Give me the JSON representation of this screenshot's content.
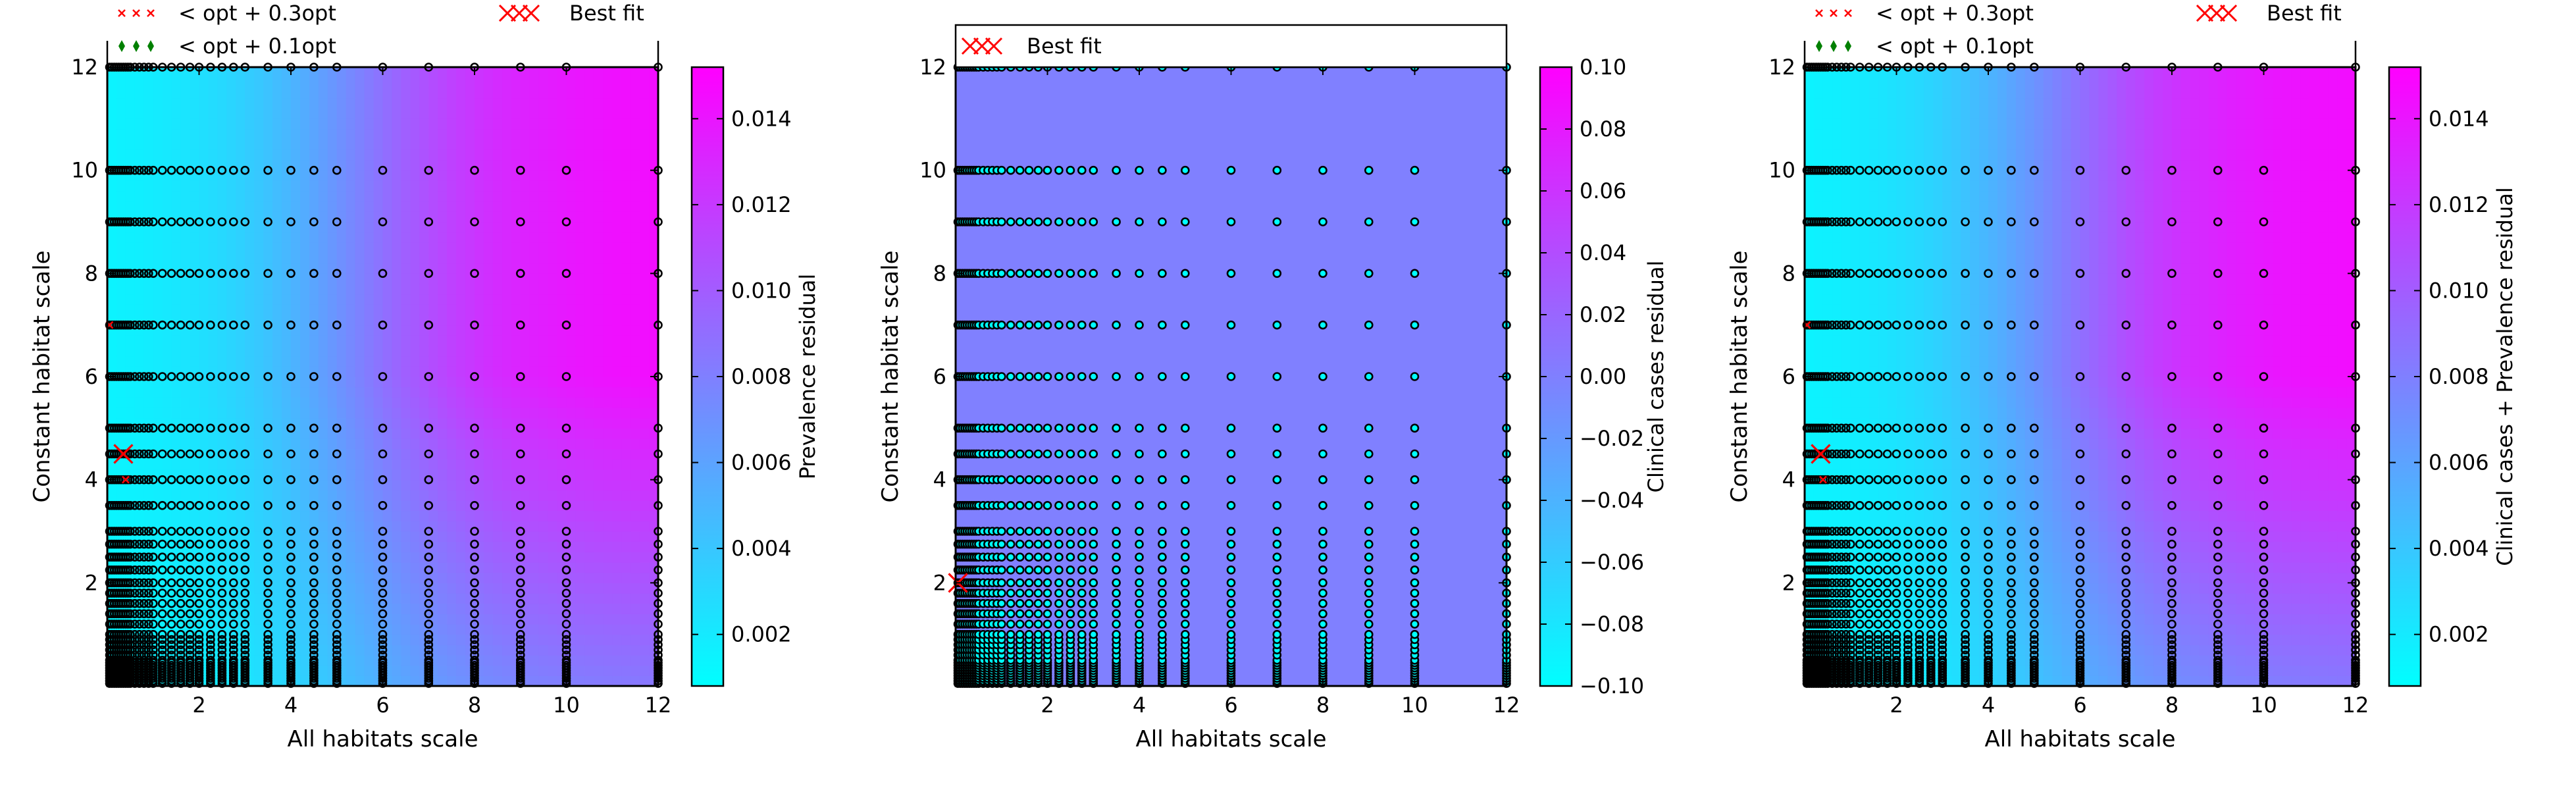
{
  "chart_data": [
    {
      "type": "heatmap",
      "xlabel": "All habitats scale",
      "ylabel": "Constant habitat scale",
      "x_ticks": [
        "2",
        "4",
        "6",
        "8",
        "10",
        "12"
      ],
      "y_ticks": [
        "2",
        "4",
        "6",
        "8",
        "10",
        "12"
      ],
      "xlim": [
        0.0,
        12.0
      ],
      "ylim": [
        0.0,
        12.0
      ],
      "colorbar": {
        "label": "Prevalence residual",
        "ticks": [
          {
            "value": 0.002,
            "label": "0.002"
          },
          {
            "value": 0.004,
            "label": "0.004"
          },
          {
            "value": 0.006,
            "label": "0.006"
          },
          {
            "value": 0.008,
            "label": "0.008"
          },
          {
            "value": 0.01,
            "label": "0.010"
          },
          {
            "value": 0.012,
            "label": "0.012"
          },
          {
            "value": 0.014,
            "label": "0.014"
          }
        ],
        "range": [
          0.0008,
          0.0152
        ],
        "colormap": [
          "#00ffff",
          "#ff00ff"
        ]
      },
      "legend": {
        "placement": "above-plot",
        "entries": [
          {
            "label": "< opt + 0.3opt",
            "marker": "x",
            "color": "#ff0000"
          },
          {
            "label": "< opt + 0.1opt",
            "marker": "diamond",
            "color": "#008000"
          },
          {
            "label": "Best fit",
            "marker": "big-x",
            "color": "#ff0000"
          }
        ]
      },
      "best_fit": {
        "x": 0.35,
        "y": 4.5
      },
      "near_opt_03": [
        {
          "x": 0.4,
          "y": 4.0
        },
        {
          "x": 0.05,
          "y": 7.0
        }
      ],
      "near_opt_01": [],
      "marker_edge_color": "#000000"
    },
    {
      "type": "heatmap",
      "xlabel": "All habitats scale",
      "ylabel": "Constant habitat scale",
      "x_ticks": [
        "2",
        "4",
        "6",
        "8",
        "10",
        "12"
      ],
      "y_ticks": [
        "2",
        "4",
        "6",
        "8",
        "10",
        "12"
      ],
      "xlim": [
        0.0,
        12.0
      ],
      "ylim": [
        0.0,
        12.0
      ],
      "colorbar": {
        "label": "Clinical cases residual",
        "ticks": [
          {
            "value": -0.1,
            "label": "−0.10"
          },
          {
            "value": -0.08,
            "label": "−0.08"
          },
          {
            "value": -0.06,
            "label": "−0.06"
          },
          {
            "value": -0.04,
            "label": "−0.04"
          },
          {
            "value": -0.02,
            "label": "−0.02"
          },
          {
            "value": 0.0,
            "label": "0.00"
          },
          {
            "value": 0.02,
            "label": "0.02"
          },
          {
            "value": 0.04,
            "label": "0.04"
          },
          {
            "value": 0.06,
            "label": "0.06"
          },
          {
            "value": 0.08,
            "label": "0.08"
          },
          {
            "value": 0.1,
            "label": "0.10"
          }
        ],
        "range": [
          -0.1,
          0.1
        ],
        "colormap": [
          "#00ffff",
          "#ff00ff"
        ]
      },
      "field_color": "#8080ff",
      "legend": {
        "placement": "above-plot",
        "entries": [
          {
            "label": "Best fit",
            "marker": "big-x",
            "color": "#ff0000"
          }
        ]
      },
      "best_fit": {
        "x": 0.05,
        "y": 2.0
      },
      "near_opt_03": [],
      "near_opt_01": [],
      "marker_edge_color": "#000000"
    },
    {
      "type": "heatmap",
      "xlabel": "All habitats scale",
      "ylabel": "Constant habitat scale",
      "x_ticks": [
        "2",
        "4",
        "6",
        "8",
        "10",
        "12"
      ],
      "y_ticks": [
        "2",
        "4",
        "6",
        "8",
        "10",
        "12"
      ],
      "xlim": [
        0.0,
        12.0
      ],
      "ylim": [
        0.0,
        12.0
      ],
      "colorbar": {
        "label": "Clinical cases + Prevalence residual",
        "ticks": [
          {
            "value": 0.002,
            "label": "0.002"
          },
          {
            "value": 0.004,
            "label": "0.004"
          },
          {
            "value": 0.006,
            "label": "0.006"
          },
          {
            "value": 0.008,
            "label": "0.008"
          },
          {
            "value": 0.01,
            "label": "0.010"
          },
          {
            "value": 0.012,
            "label": "0.012"
          },
          {
            "value": 0.014,
            "label": "0.014"
          }
        ],
        "range": [
          0.0008,
          0.0152
        ],
        "colormap": [
          "#00ffff",
          "#ff00ff"
        ]
      },
      "legend": {
        "placement": "above-plot",
        "entries": [
          {
            "label": "< opt + 0.3opt",
            "marker": "x",
            "color": "#ff0000"
          },
          {
            "label": "< opt + 0.1opt",
            "marker": "diamond",
            "color": "#008000"
          },
          {
            "label": "Best fit",
            "marker": "big-x",
            "color": "#ff0000"
          }
        ]
      },
      "best_fit": {
        "x": 0.35,
        "y": 4.5
      },
      "near_opt_03": [
        {
          "x": 0.4,
          "y": 4.0
        },
        {
          "x": 0.05,
          "y": 7.0
        }
      ],
      "near_opt_01": [],
      "marker_edge_color": "#000000"
    }
  ],
  "sample_grid": {
    "x": [
      0.05,
      0.1,
      0.15,
      0.2,
      0.25,
      0.3,
      0.35,
      0.4,
      0.45,
      0.5,
      0.6,
      0.7,
      0.8,
      0.9,
      1.0,
      1.2,
      1.4,
      1.6,
      1.8,
      2.0,
      2.25,
      2.5,
      2.75,
      3.0,
      3.5,
      4.0,
      4.5,
      5.0,
      6.0,
      7.0,
      8.0,
      9.0,
      10.0,
      12.0
    ],
    "y": [
      0.05,
      0.1,
      0.15,
      0.2,
      0.25,
      0.3,
      0.35,
      0.4,
      0.45,
      0.5,
      0.6,
      0.7,
      0.8,
      0.9,
      1.0,
      1.2,
      1.4,
      1.6,
      1.8,
      2.0,
      2.25,
      2.5,
      2.75,
      3.0,
      3.5,
      4.0,
      4.5,
      5.0,
      6.0,
      7.0,
      8.0,
      9.0,
      10.0,
      12.0
    ]
  }
}
